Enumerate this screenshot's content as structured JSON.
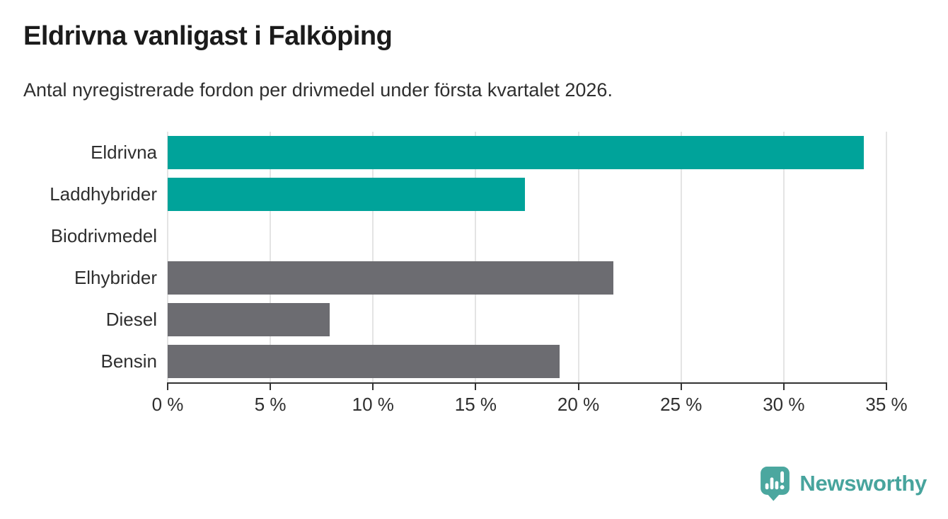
{
  "chart_data": {
    "type": "bar",
    "orientation": "horizontal",
    "title": "Eldrivna vanligast i Falköping",
    "subtitle": "Antal nyregistrerade fordon per drivmedel under första kvartalet 2026.",
    "categories": [
      "Eldrivna",
      "Laddhybrider",
      "Biodrivmedel",
      "Elhybrider",
      "Diesel",
      "Bensin"
    ],
    "values": [
      33.9,
      17.4,
      0,
      21.7,
      7.9,
      19.1
    ],
    "unit": "%",
    "xlim": [
      0,
      35
    ],
    "xticks": [
      0,
      5,
      10,
      15,
      20,
      25,
      30,
      35
    ],
    "xtick_labels": [
      "0 %",
      "5 %",
      "10 %",
      "15 %",
      "20 %",
      "25 %",
      "30 %",
      "35 %"
    ],
    "bar_colors": [
      "#00A39A",
      "#00A39A",
      "#00A39A",
      "#6C6C71",
      "#6C6C71",
      "#6C6C71"
    ],
    "grid": "vertical",
    "legend": "none"
  },
  "branding": {
    "logo_text": "Newsworthy",
    "logo_color": "#47A49D",
    "logo_icon": "newsworthy-pin-chart-icon",
    "logo_icon_color": "#4BA79F"
  },
  "colors": {
    "highlight": "#00A39A",
    "neutral": "#6C6C71",
    "axis": "#333333",
    "gridline": "#E4E4E4",
    "title_text": "#1B1B1B",
    "body_text": "#2F2F2F",
    "background": "#FFFFFF"
  }
}
